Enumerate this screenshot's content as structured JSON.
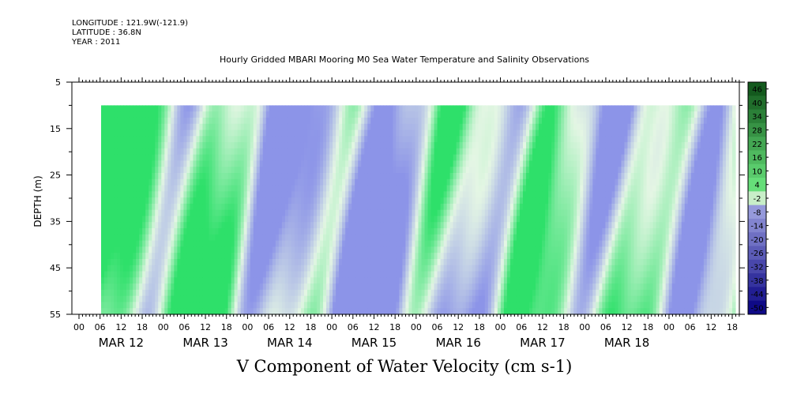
{
  "header": {
    "longitude": "LONGITUDE : 121.9W(-121.9)",
    "latitude": "LATITUDE : 36.8N",
    "year": "YEAR : 2011"
  },
  "chart_data": {
    "type": "heatmap",
    "title": "Hourly Gridded MBARI Mooring M0 Sea Water Temperature and Salinity Observations",
    "xlabel": "V Component of Water Velocity (cm s-1)",
    "ylabel": "DEPTH (m)",
    "ylim": [
      55,
      5
    ],
    "y_ticks": [
      5,
      15,
      25,
      35,
      45,
      55
    ],
    "x_hour_labels": [
      "00",
      "06",
      "12",
      "18",
      "00",
      "06",
      "12",
      "18",
      "00",
      "06",
      "12",
      "18",
      "00",
      "06",
      "12",
      "18",
      "00",
      "06",
      "12",
      "18",
      "00",
      "06",
      "12",
      "18",
      "00",
      "06",
      "12",
      "18",
      "00",
      "06",
      "12",
      "18"
    ],
    "x_day_labels": [
      "MAR 12",
      "MAR 13",
      "MAR 14",
      "MAR 15",
      "MAR 16",
      "MAR 17",
      "MAR 18"
    ],
    "data_start": "MAR 12 06:00",
    "data_end": "MAR 18 23:00",
    "depth_range": [
      10,
      55
    ],
    "colorbar_levels": [
      "46",
      "40",
      "34",
      "28",
      "22",
      "16",
      "10",
      "4",
      "-2",
      "-8",
      "-14",
      "-20",
      "-26",
      "-32",
      "-38",
      "-44",
      "-50"
    ],
    "colors": {
      "positive": "#2ee06a",
      "neutral": "#e4f6e4",
      "negative": "#8c94e8"
    }
  }
}
